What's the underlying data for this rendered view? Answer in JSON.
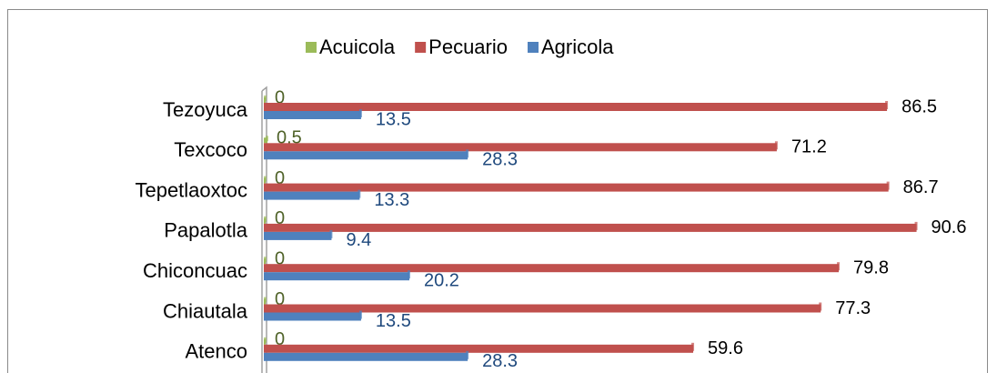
{
  "chart_data": {
    "type": "bar",
    "orientation": "horizontal",
    "categories": [
      "Tezoyuca",
      "Texcoco",
      "Tepetlaoxtoc",
      "Papalotla",
      "Chiconcuac",
      "Chiautala",
      "Atenco"
    ],
    "series": [
      {
        "name": "Acuicola",
        "color": "#9bbb59",
        "values": [
          0,
          0.5,
          0,
          0,
          0,
          0,
          0
        ]
      },
      {
        "name": "Pecuario",
        "color": "#c0504d",
        "values": [
          86.5,
          71.2,
          86.7,
          90.6,
          79.8,
          77.3,
          59.6
        ]
      },
      {
        "name": "Agricola",
        "color": "#4f81bd",
        "values": [
          13.5,
          28.3,
          13.3,
          9.4,
          20.2,
          13.5,
          28.3
        ]
      }
    ],
    "legend": "top",
    "grid": false
  }
}
